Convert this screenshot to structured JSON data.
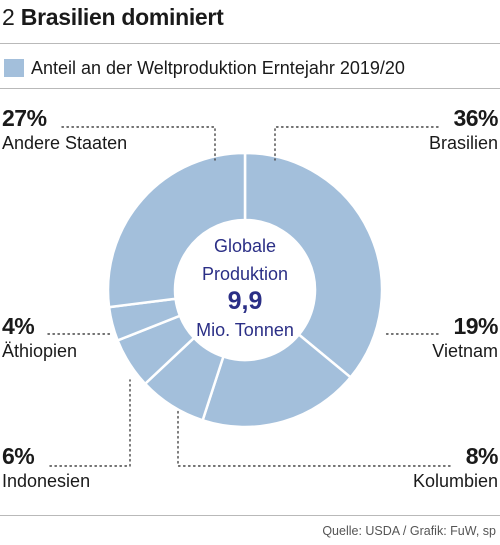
{
  "header": {
    "number": "2",
    "title": "Brasilien dominiert"
  },
  "legend": {
    "label": "Anteil an der Weltproduktion Erntejahr 2019/20",
    "color": "#a3bfdb"
  },
  "center": {
    "line1": "Globale",
    "line2": "Produktion",
    "value": "9,9",
    "unit": "Mio. Tonnen",
    "text_color": "#2b2f86"
  },
  "source": "Quelle: USDA  / Grafik: FuW, sp",
  "chart_data": {
    "type": "pie",
    "style": "donut",
    "title": "Brasilien dominiert",
    "legend": "Anteil an der Weltproduktion Erntejahr 2019/20",
    "legend_position": "top-left",
    "total": "9,9",
    "total_unit": "Mio. Tonnen",
    "slice_color": "#a3bfdb",
    "separator_color": "#ffffff",
    "slices": [
      {
        "name": "Brasilien",
        "value": 36,
        "label": "36%"
      },
      {
        "name": "Vietnam",
        "value": 19,
        "label": "19%"
      },
      {
        "name": "Kolumbien",
        "value": 8,
        "label": "8%"
      },
      {
        "name": "Indonesien",
        "value": 6,
        "label": "6%"
      },
      {
        "name": "Äthiopien",
        "value": 4,
        "label": "4%"
      },
      {
        "name": "Andere Staaten",
        "value": 27,
        "label": "27%"
      }
    ]
  }
}
